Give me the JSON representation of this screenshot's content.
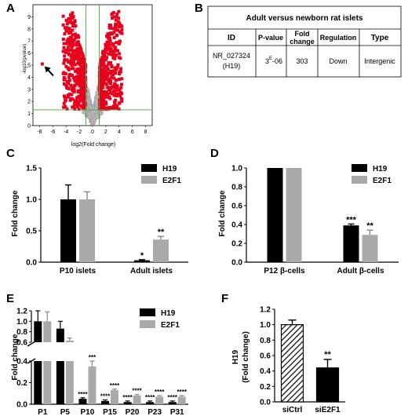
{
  "panels": {
    "A": {
      "letter": "A",
      "ylabel": "-log10(pvalue)",
      "xlabel": "log2(Fold change)",
      "chart_data": {
        "type": "scatter",
        "xticks": [
          "-8",
          "-6",
          "-4",
          "-2",
          "0",
          "2",
          "4",
          "6",
          "8"
        ],
        "yticks": [
          "0",
          "1",
          "2",
          "3",
          "4",
          "5",
          "6",
          "7",
          "8",
          "9"
        ],
        "xlim": [
          -9,
          9
        ],
        "ylim": [
          0,
          10
        ],
        "threshold_lines": {
          "x": [
            -1,
            1
          ],
          "y": 1.3
        },
        "highlight_color": "#e8001c",
        "background_color": "#b0b0b0",
        "arrow_point": {
          "x": -7.6,
          "y": 5.1
        }
      }
    },
    "B": {
      "letter": "B",
      "title": "Adult versus newborn rat islets",
      "headers": [
        "ID",
        "P-value",
        "Fold change",
        "Regulation",
        "Type"
      ],
      "row": {
        "id": "NR_027324",
        "id_sub": "(H19)",
        "pvalue_base": "3",
        "pvalue_exp": "E",
        "pvalue_tail": "-06",
        "fold": "303",
        "regulation": "Down",
        "type": "Intergenic"
      }
    },
    "C": {
      "letter": "C",
      "chart_data": {
        "type": "bar",
        "ylabel": "Fold change",
        "categories": [
          "P10 islets",
          "Adult islets"
        ],
        "series": [
          {
            "name": "H19",
            "values": [
              1.0,
              0.03
            ],
            "errors": [
              0.23,
              0.01
            ],
            "color": "#000000"
          },
          {
            "name": "E2F1",
            "values": [
              1.0,
              0.36
            ],
            "errors": [
              0.12,
              0.05
            ],
            "color": "#a9a9a9"
          }
        ],
        "ylim": [
          0,
          1.5
        ],
        "yticks": [
          "0.0",
          "0.5",
          "1.0",
          "1.5"
        ],
        "significance": [
          [
            "",
            "*"
          ],
          [
            "",
            "**"
          ]
        ]
      }
    },
    "D": {
      "letter": "D",
      "chart_data": {
        "type": "bar",
        "ylabel": "Fold change",
        "categories": [
          "P12 β-cells",
          "Adult β-cells"
        ],
        "series": [
          {
            "name": "H19",
            "values": [
              1.0,
              0.39
            ],
            "errors": [
              0.0,
              0.015
            ],
            "color": "#000000"
          },
          {
            "name": "E2F1",
            "values": [
              1.0,
              0.29
            ],
            "errors": [
              0.0,
              0.05
            ],
            "color": "#a9a9a9"
          }
        ],
        "ylim": [
          0,
          1.0
        ],
        "yticks": [
          "0.0",
          "0.2",
          "0.4",
          "0.6",
          "0.8",
          "1.0"
        ],
        "significance": [
          [
            "",
            "***"
          ],
          [
            "",
            "**"
          ]
        ]
      }
    },
    "E": {
      "letter": "E",
      "chart_data": {
        "type": "bar",
        "ylabel": "Fold change",
        "categories": [
          "P1",
          "P5",
          "P10",
          "P15",
          "P20",
          "P23",
          "P31"
        ],
        "series": [
          {
            "name": "H19",
            "values": [
              1.0,
              0.86,
              0.05,
              0.03,
              0.02,
              0.02,
              0.02
            ],
            "errors": [
              0.2,
              0.14,
              0.01,
              0.01,
              0.01,
              0.01,
              0.01
            ],
            "color": "#000000"
          },
          {
            "name": "E2F1",
            "values": [
              1.0,
              0.63,
              0.35,
              0.13,
              0.08,
              0.07,
              0.07
            ],
            "errors": [
              0.18,
              0.05,
              0.05,
              0.01,
              0.01,
              0.01,
              0.01
            ],
            "color": "#a9a9a9"
          }
        ],
        "axis_break": {
          "lower": [
            0,
            0.4
          ],
          "upper": [
            0.6,
            1.2
          ]
        },
        "yticks_upper": [
          "0.6",
          "0.8",
          "1.0",
          "1.2"
        ],
        "yticks_lower": [
          "0.0",
          "0.2",
          "0.4"
        ],
        "significance": [
          [
            "",
            "",
            "****",
            "****",
            "****",
            "****",
            "****"
          ],
          [
            "",
            "",
            "***",
            "****",
            "****",
            "****",
            "****"
          ]
        ]
      }
    },
    "F": {
      "letter": "F",
      "chart_data": {
        "type": "bar",
        "ylabel_line1": "H19",
        "ylabel_line2": "(Fold change)",
        "categories": [
          "siCtrl",
          "siE2F1"
        ],
        "values": [
          1.0,
          0.44
        ],
        "errors": [
          0.06,
          0.11
        ],
        "ylim": [
          0,
          1.2
        ],
        "yticks": [
          "0.0",
          "0.2",
          "0.4",
          "0.6",
          "0.8",
          "1.0",
          "1.2"
        ],
        "significance": [
          "",
          "**"
        ]
      }
    }
  }
}
